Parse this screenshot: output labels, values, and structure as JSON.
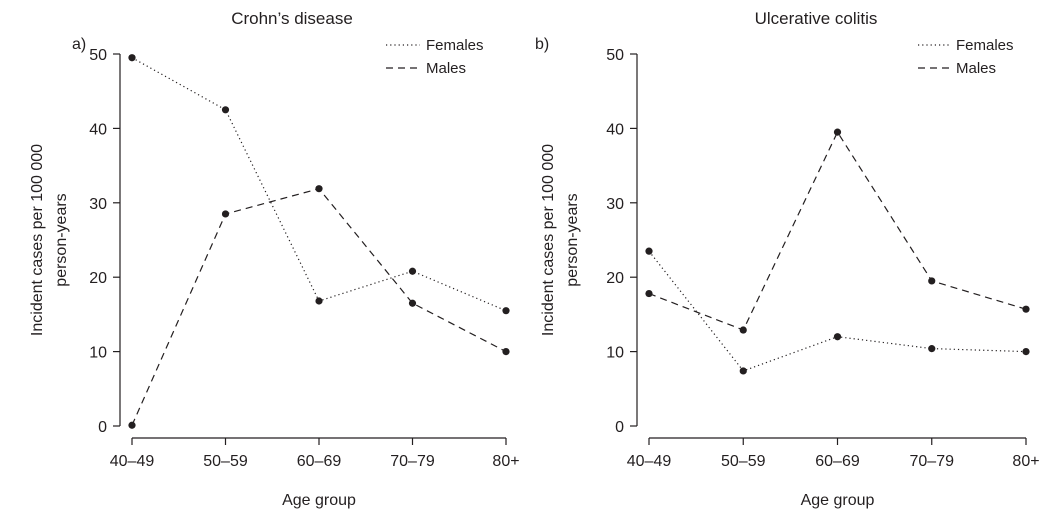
{
  "chart_data": [
    {
      "type": "line",
      "panel_letter": "a)",
      "title": "Crohn’s disease",
      "xlabel": "Age group",
      "ylabel_lines": [
        "Incident cases per 100 000",
        "person-years"
      ],
      "categories": [
        "40–49",
        "50–59",
        "60–69",
        "70–79",
        "80+"
      ],
      "yticks": [
        "0",
        "10",
        "20",
        "30",
        "40",
        "50"
      ],
      "ylim": [
        0,
        50
      ],
      "legend_position": "top-right",
      "series": [
        {
          "name": "Females",
          "style": "dotted",
          "values": [
            49.5,
            42.5,
            16.8,
            20.8,
            15.5
          ]
        },
        {
          "name": "Males",
          "style": "dashed",
          "values": [
            0.1,
            28.5,
            31.9,
            16.5,
            10.0
          ]
        }
      ]
    },
    {
      "type": "line",
      "panel_letter": "b)",
      "title": "Ulcerative colitis",
      "xlabel": "Age group",
      "ylabel_lines": [
        "Incident cases per 100 000",
        "person-years"
      ],
      "categories": [
        "40–49",
        "50–59",
        "60–69",
        "70–79",
        "80+"
      ],
      "yticks": [
        "0",
        "10",
        "20",
        "30",
        "40",
        "50"
      ],
      "ylim": [
        0,
        50
      ],
      "legend_position": "top-right",
      "series": [
        {
          "name": "Females",
          "style": "dotted",
          "values": [
            23.5,
            7.4,
            12.0,
            10.4,
            10.0
          ]
        },
        {
          "name": "Males",
          "style": "dashed",
          "values": [
            17.8,
            12.9,
            39.5,
            19.5,
            15.7
          ]
        }
      ]
    }
  ]
}
